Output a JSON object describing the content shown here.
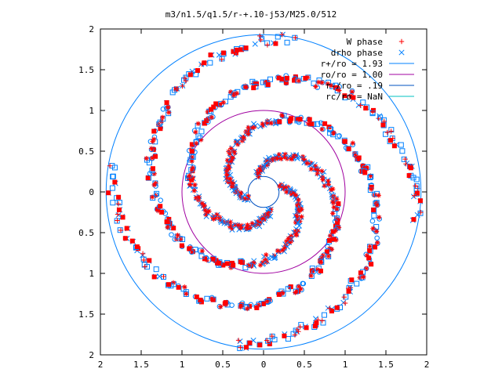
{
  "chart_data": {
    "type": "scatter",
    "title": "m3/n1.5/q1.5/r-+.10-j53/M25.0/512",
    "xlabel": "",
    "ylabel": "",
    "xlim": [
      -2,
      2
    ],
    "ylim": [
      -2,
      2
    ],
    "x_ticks": [
      -2,
      -1.5,
      -1,
      -0.5,
      0,
      0.5,
      1,
      1.5,
      2
    ],
    "y_ticks": [
      -2,
      -1.5,
      -1,
      -0.5,
      0,
      0.5,
      1,
      1.5,
      2
    ],
    "x_tick_labels": [
      "2",
      "1.5",
      "1",
      "0.5",
      "0",
      "0.5",
      "1",
      "1.5",
      "2"
    ],
    "y_tick_labels": [
      "2",
      "1.5",
      "1",
      "0.5",
      "0",
      "0.5",
      "1",
      "1.5",
      "2"
    ],
    "grid": false,
    "legend_position": "top-right",
    "legend": [
      {
        "label": "W phase",
        "kind": "plus",
        "color": "#ff0000"
      },
      {
        "label": "drho phase",
        "kind": "cross",
        "color": "#0080ff"
      },
      {
        "label": "r+/ro = 1.93",
        "kind": "line",
        "color": "#0080ff"
      },
      {
        "label": "ro/ro = 1.00",
        "kind": "line",
        "color": "#a000a0"
      },
      {
        "label": "r-/ro = .19",
        "kind": "line",
        "color": "#0050c0"
      },
      {
        "label": "rc/ro = NaN",
        "kind": "line",
        "color": "#00c0c0"
      }
    ],
    "circles": [
      {
        "name": "r+",
        "r": 1.93,
        "color": "#0080ff"
      },
      {
        "name": "ro",
        "r": 1.0,
        "color": "#a000a0"
      },
      {
        "name": "r-",
        "r": 0.19,
        "color": "#0050c0"
      }
    ],
    "spiral_arms": [
      {
        "series": "W phase",
        "start_angle_deg": 200,
        "count": 4
      },
      {
        "series": "drho phase",
        "start_angle_deg": 200,
        "count": 4
      }
    ]
  }
}
